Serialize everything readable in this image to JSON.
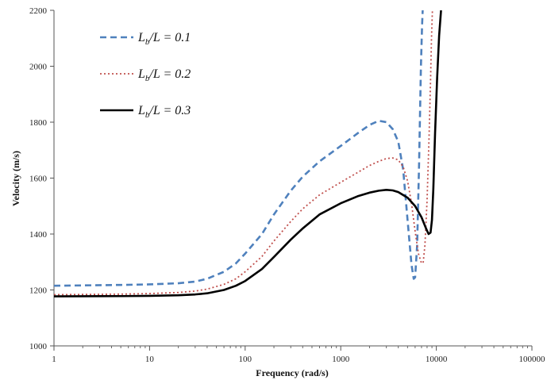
{
  "chart_data": {
    "type": "line",
    "title": "",
    "xlabel": "Frequency (rad/s)",
    "ylabel": "Velocity (m/s)",
    "xscale": "log",
    "xlim": [
      1,
      100000
    ],
    "ylim": [
      1000,
      2200
    ],
    "x_ticks": [
      1,
      10,
      100,
      1000,
      10000,
      100000
    ],
    "x_tick_labels": [
      "1",
      "10",
      "100",
      "1000",
      "10000",
      "100000"
    ],
    "y_ticks": [
      1000,
      1200,
      1400,
      1600,
      1800,
      2000,
      2200
    ],
    "y_tick_labels": [
      "1000",
      "1200",
      "1400",
      "1600",
      "1800",
      "2000",
      "2200"
    ],
    "grid": false,
    "legend_position": "top-left",
    "series": [
      {
        "name": "Lb/L = 0.1",
        "legend": {
          "var": "L",
          "sub": "b",
          "rest": "/L = 0.1"
        },
        "color": "#4f81bd",
        "dash": "dashed",
        "x": [
          1,
          5,
          10,
          20,
          30,
          40,
          60,
          80,
          100,
          150,
          200,
          300,
          400,
          600,
          1000,
          1500,
          2000,
          2500,
          3000,
          3500,
          4000,
          4500,
          5000,
          5500,
          5800,
          6000,
          6300,
          6600,
          6900,
          7100,
          7200
        ],
        "y": [
          1215,
          1218,
          1220,
          1224,
          1230,
          1240,
          1265,
          1295,
          1330,
          1400,
          1470,
          1555,
          1605,
          1660,
          1715,
          1760,
          1790,
          1805,
          1800,
          1775,
          1730,
          1630,
          1450,
          1290,
          1240,
          1245,
          1360,
          1650,
          2000,
          2150,
          2200
        ]
      },
      {
        "name": "Lb/L = 0.2",
        "legend": {
          "var": "L",
          "sub": "b",
          "rest": "/L = 0.2"
        },
        "color": "#c0504d",
        "dash": "dotted",
        "x": [
          1,
          5,
          10,
          20,
          30,
          40,
          60,
          80,
          100,
          150,
          200,
          300,
          400,
          600,
          1000,
          1500,
          2000,
          2500,
          3000,
          3500,
          4000,
          4500,
          5000,
          5500,
          6000,
          6500,
          7000,
          7300,
          7600,
          8000,
          8400,
          8700,
          8900,
          9100
        ],
        "y": [
          1183,
          1185,
          1187,
          1191,
          1196,
          1203,
          1220,
          1240,
          1265,
          1320,
          1375,
          1445,
          1490,
          1540,
          1585,
          1620,
          1645,
          1660,
          1670,
          1672,
          1665,
          1640,
          1590,
          1510,
          1410,
          1330,
          1295,
          1300,
          1360,
          1520,
          1750,
          1950,
          2100,
          2200
        ]
      },
      {
        "name": "Lb/L = 0.3",
        "legend": {
          "var": "L",
          "sub": "b",
          "rest": "/L = 0.3"
        },
        "color": "#000000",
        "dash": "solid",
        "x": [
          1,
          5,
          10,
          20,
          30,
          40,
          60,
          80,
          100,
          150,
          200,
          300,
          400,
          600,
          1000,
          1500,
          2000,
          2500,
          3000,
          3500,
          4000,
          5000,
          6000,
          7000,
          7800,
          8300,
          8700,
          9000,
          9300,
          9700,
          10200,
          10700,
          11200
        ],
        "y": [
          1177,
          1178,
          1179,
          1181,
          1184,
          1188,
          1200,
          1215,
          1232,
          1275,
          1318,
          1380,
          1420,
          1470,
          1510,
          1535,
          1548,
          1555,
          1558,
          1556,
          1550,
          1530,
          1500,
          1460,
          1420,
          1400,
          1405,
          1450,
          1560,
          1760,
          1960,
          2110,
          2200
        ]
      }
    ]
  }
}
